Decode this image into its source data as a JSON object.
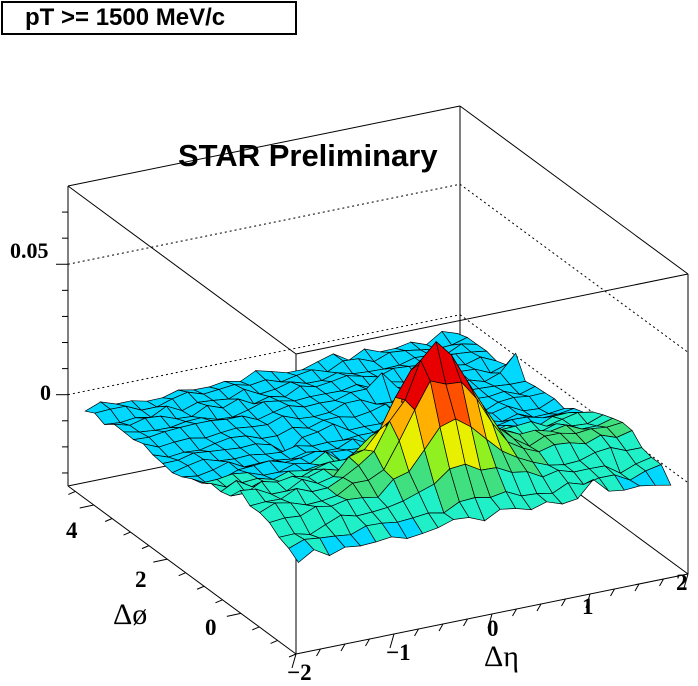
{
  "label_box": "pT >= 1500 MeV/c",
  "chart_data": {
    "type": "surface",
    "title": "STAR Preliminary",
    "xlabel": "Δη",
    "ylabel": "Δø",
    "xlim": [
      -2,
      2
    ],
    "ylim": [
      -1.5,
      4.7
    ],
    "zlim": [
      -0.035,
      0.08
    ],
    "x_ticks": [
      "−2",
      "−1",
      "0",
      "1",
      "2"
    ],
    "y_ticks": [
      "0",
      "2",
      "4"
    ],
    "z_ticks": [
      "0",
      "0.05"
    ],
    "near_side_peak": {
      "delta_eta": 0,
      "delta_phi": 0,
      "height": 0.045,
      "width_eta": 0.35,
      "width_phi": 0.45
    },
    "away_side_ridge": {
      "delta_phi": 3.14,
      "height": 0.002
    },
    "baseline": -0.005,
    "grid_nx": 24,
    "grid_ny": 22,
    "palette": [
      "#7a00d0",
      "#2b2bff",
      "#0090ff",
      "#00d8ff",
      "#20f0c8",
      "#40e080",
      "#90f020",
      "#e8f000",
      "#ffb000",
      "#ff5000",
      "#e80000"
    ]
  }
}
